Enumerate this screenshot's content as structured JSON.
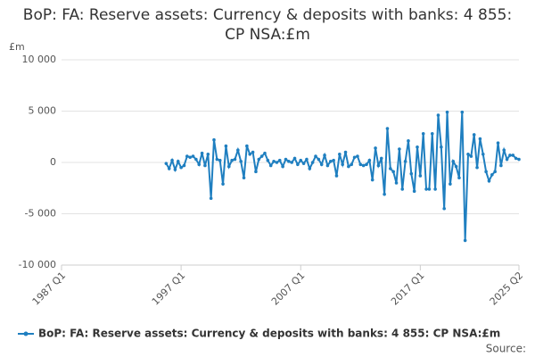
{
  "chart_data": {
    "type": "line",
    "title": "BoP: FA: Reserve assets: Currency & deposits with banks: 4 855: CP NSA:£m",
    "y_label": "£m",
    "source": "Source:",
    "categories": [
      "1987 Q1",
      null,
      null,
      null,
      null,
      null,
      null,
      null,
      null,
      null,
      null,
      null,
      null,
      null,
      null,
      null,
      null,
      null,
      null,
      null,
      null,
      null,
      null,
      null,
      null,
      null,
      null,
      null,
      null,
      null,
      null,
      null,
      null,
      null,
      null,
      null,
      null,
      null,
      null,
      null,
      "1997 Q1",
      null,
      null,
      null,
      null,
      null,
      null,
      null,
      null,
      null,
      null,
      null,
      null,
      null,
      null,
      null,
      null,
      null,
      null,
      null,
      null,
      null,
      null,
      null,
      null,
      null,
      null,
      null,
      null,
      null,
      null,
      null,
      null,
      null,
      null,
      null,
      null,
      null,
      null,
      null,
      "2007 Q1",
      null,
      null,
      null,
      null,
      null,
      null,
      null,
      null,
      null,
      null,
      null,
      null,
      null,
      null,
      null,
      null,
      null,
      null,
      null,
      null,
      null,
      null,
      null,
      null,
      null,
      null,
      null,
      null,
      null,
      null,
      null,
      null,
      null,
      null,
      null,
      null,
      null,
      null,
      null,
      "2017 Q1",
      null,
      null,
      null,
      null,
      null,
      null,
      null,
      null,
      null,
      null,
      null,
      null,
      null,
      null,
      null,
      null,
      null,
      null,
      null,
      null,
      null,
      null,
      null,
      null,
      null,
      null,
      null,
      null,
      null,
      null,
      null,
      null,
      "2025 Q2"
    ],
    "series": [
      {
        "name": "BoP: FA: Reserve assets: Currency & deposits with banks: 4 855: CP NSA:£m",
        "color": "#1f7fc0",
        "values": [
          null,
          null,
          null,
          null,
          null,
          null,
          null,
          null,
          null,
          null,
          null,
          null,
          null,
          null,
          null,
          null,
          null,
          null,
          null,
          null,
          null,
          null,
          null,
          null,
          null,
          null,
          null,
          null,
          null,
          null,
          null,
          null,
          null,
          null,
          null,
          -100,
          -600,
          200,
          -700,
          100,
          -500,
          -300,
          600,
          500,
          600,
          300,
          -200,
          900,
          -300,
          800,
          -3500,
          2200,
          300,
          200,
          -2100,
          1600,
          -400,
          200,
          300,
          1200,
          100,
          -1500,
          1600,
          800,
          1000,
          -900,
          300,
          600,
          900,
          200,
          -300,
          100,
          0,
          200,
          -400,
          300,
          100,
          0,
          400,
          -200,
          200,
          -100,
          300,
          -600,
          0,
          600,
          300,
          -200,
          700,
          -300,
          100,
          200,
          -1300,
          800,
          -200,
          1000,
          -400,
          -200,
          500,
          600,
          -200,
          -300,
          -200,
          200,
          -1700,
          1400,
          -300,
          400,
          -3100,
          3300,
          -600,
          -900,
          -2000,
          1300,
          -2600,
          100,
          2100,
          -1100,
          -2800,
          1500,
          -1300,
          2800,
          -2600,
          -2600,
          2800,
          -2600,
          4600,
          1500,
          -4500,
          4900,
          -2100,
          100,
          -400,
          -1500,
          4900,
          -7600,
          800,
          600,
          2700,
          -500,
          2300,
          800,
          -900,
          -1800,
          -1200,
          -900,
          1900,
          -300,
          1200,
          300,
          700,
          700,
          400,
          300
        ]
      }
    ],
    "ylim": [
      -10000,
      10000
    ],
    "yticks": [
      {
        "value": -10000,
        "label": "-10 000"
      },
      {
        "value": -5000,
        "label": "-5 000"
      },
      0,
      {
        "value": 5000,
        "label": "5 000"
      },
      {
        "value": 10000,
        "label": "10 000"
      }
    ],
    "grid": true
  }
}
